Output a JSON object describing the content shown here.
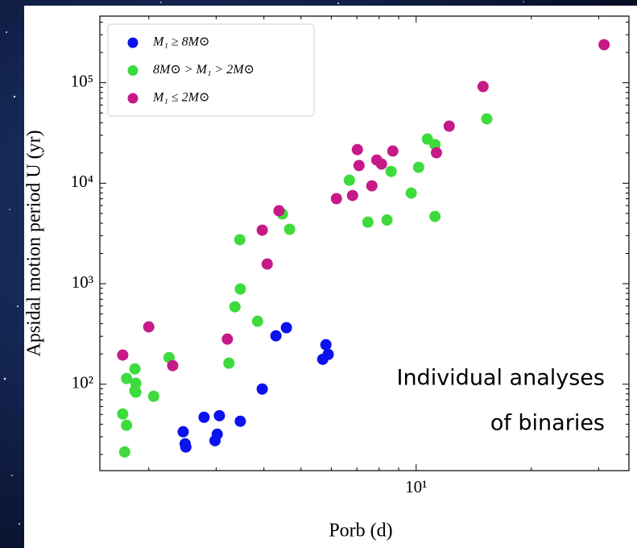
{
  "chart_data": {
    "type": "scatter",
    "x_label": "Porb (d)",
    "y_label": "Apsidal motion period U (yr)",
    "annotation_lines": [
      "Individual analyses",
      "of binaries"
    ],
    "xscale": "log",
    "yscale": "log",
    "legend": "upper-left",
    "xlim": [
      1.49,
      36
    ],
    "ylim": [
      13.8,
      460000
    ],
    "xticks": [
      {
        "value": 10,
        "label": "10¹"
      }
    ],
    "yticks": [
      {
        "value": 100,
        "label": "10²"
      },
      {
        "value": 1000,
        "label": "10³"
      },
      {
        "value": 10000,
        "label": "10⁴"
      },
      {
        "value": 100000,
        "label": "10⁵"
      }
    ],
    "series": [
      {
        "name": "M₁ ≥ 8M⊙",
        "color": "#0b12ee",
        "x": [
          2.46,
          2.49,
          2.5,
          2.79,
          2.98,
          3.02,
          3.06,
          3.47,
          3.96,
          4.3,
          4.58,
          5.7,
          5.81,
          5.89
        ],
        "values": [
          33.6,
          25.5,
          23.7,
          46.9,
          27.4,
          31.8,
          48.6,
          42.8,
          89.5,
          303,
          365,
          177,
          247,
          198
        ]
      },
      {
        "name": "8M⊙ > M₁ > 2M⊙",
        "color": "#3ddb3d",
        "x": [
          1.71,
          1.75,
          1.73,
          1.75,
          1.84,
          1.85,
          1.84,
          1.85,
          2.06,
          2.26,
          3.24,
          3.36,
          3.47,
          3.46,
          3.85,
          4.47,
          4.67,
          6.69,
          7.48,
          8.39,
          8.6,
          9.71,
          10.15,
          10.7,
          11.2,
          11.2,
          15.3
        ],
        "values": [
          50.5,
          39.0,
          21.2,
          114,
          142,
          102,
          86.3,
          83.2,
          75.8,
          184,
          162,
          589,
          885,
          2740,
          423,
          4940,
          3480,
          10700,
          4100,
          4300,
          13100,
          7980,
          14400,
          27500,
          24200,
          4670,
          43700
        ]
      },
      {
        "name": "M₁ ≤ 2M⊙",
        "color": "#c61a88",
        "x": [
          1.71,
          2.0,
          2.31,
          3.21,
          3.96,
          4.08,
          4.38,
          6.19,
          6.82,
          7.02,
          7.09,
          7.66,
          7.89,
          8.12,
          8.69,
          11.3,
          12.2,
          14.96,
          31
        ],
        "values": [
          195,
          372,
          153,
          281,
          3410,
          1570,
          5320,
          7020,
          7550,
          21600,
          15000,
          9420,
          17000,
          15500,
          20900,
          20100,
          37000,
          91600,
          239000
        ]
      }
    ]
  }
}
